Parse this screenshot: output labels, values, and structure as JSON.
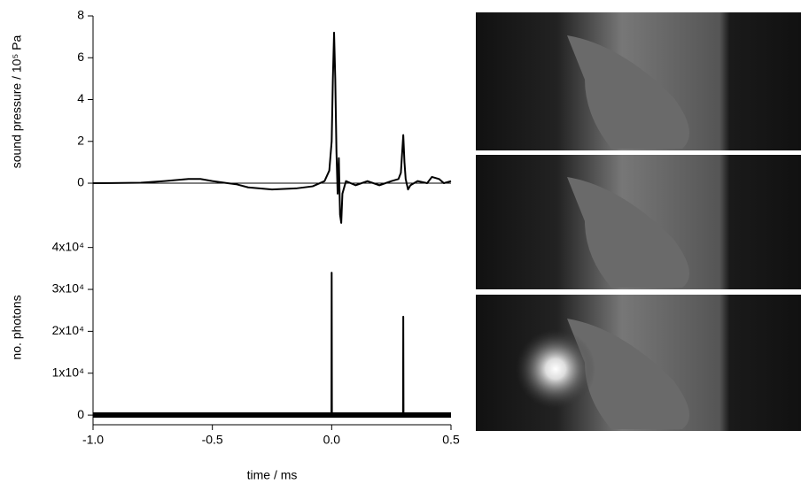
{
  "chart_data": [
    {
      "type": "line",
      "ylabel": "sound pressure / 10⁵ Pa",
      "color": "#000000",
      "xlim": [
        -1.0,
        0.5
      ],
      "ylim": [
        -2.2,
        8
      ],
      "yticks": [
        0,
        2,
        4,
        6,
        8
      ],
      "zero_line": true,
      "x": [
        -1.0,
        -0.8,
        -0.7,
        -0.6,
        -0.55,
        -0.5,
        -0.45,
        -0.4,
        -0.35,
        -0.25,
        -0.15,
        -0.08,
        -0.03,
        -0.01,
        0.0,
        0.005,
        0.01,
        0.015,
        0.02,
        0.025,
        0.03,
        0.035,
        0.04,
        0.045,
        0.06,
        0.1,
        0.15,
        0.2,
        0.25,
        0.28,
        0.29,
        0.3,
        0.305,
        0.31,
        0.32,
        0.33,
        0.36,
        0.4,
        0.42,
        0.45,
        0.47,
        0.5
      ],
      "values": [
        0,
        0.02,
        0.1,
        0.2,
        0.2,
        0.1,
        0.02,
        -0.05,
        -0.2,
        -0.3,
        -0.25,
        -0.15,
        0.1,
        0.6,
        2.0,
        5.0,
        7.2,
        5.0,
        1.5,
        -0.5,
        1.2,
        -1.5,
        -1.9,
        -0.5,
        0.1,
        -0.1,
        0.1,
        -0.1,
        0.1,
        0.2,
        0.5,
        2.3,
        1.0,
        0.2,
        -0.3,
        -0.1,
        0.1,
        0.0,
        0.3,
        0.2,
        0.0,
        0.1
      ]
    },
    {
      "type": "line",
      "ylabel": "no. photons",
      "xlabel": "time / ms",
      "color": "#000000",
      "xlim": [
        -1.0,
        0.5
      ],
      "ylim": [
        -2300,
        45000
      ],
      "xticks": [
        {
          "value": -1.0,
          "label": "-1.0"
        },
        {
          "value": -0.5,
          "label": "-0.5"
        },
        {
          "value": 0.0,
          "label": "0.0"
        },
        {
          "value": 0.5,
          "label": "0.5"
        }
      ],
      "yticks": [
        0,
        {
          "value": 10000,
          "label": "1x10⁴"
        },
        {
          "value": 20000,
          "label": "2x10⁴"
        },
        {
          "value": 30000,
          "label": "3x10⁴"
        },
        {
          "value": 40000,
          "label": "4x10⁴"
        }
      ],
      "x": [
        -1.0,
        -0.001,
        0.0,
        0.001,
        0.299,
        0.3,
        0.301,
        0.5
      ],
      "values": [
        0,
        0,
        34000,
        0,
        0,
        23500,
        0,
        0
      ]
    }
  ]
}
